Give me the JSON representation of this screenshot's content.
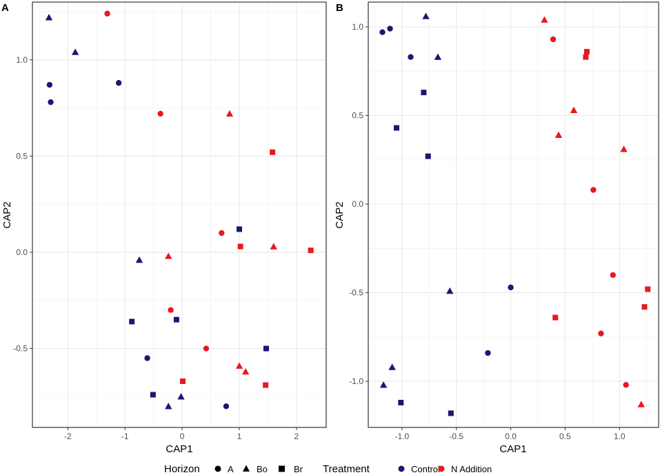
{
  "chart_data": [
    {
      "type": "scatter",
      "panel_label": "A",
      "xlabel": "CAP1",
      "ylabel": "CAP2",
      "xlim": [
        -2.62,
        2.52
      ],
      "ylim": [
        -0.91,
        1.3
      ],
      "xticks": [
        -2,
        -1,
        0,
        1,
        2
      ],
      "yticks": [
        -0.5,
        0.0,
        0.5,
        1.0
      ],
      "ytick_labels": [
        "-0.5",
        "0.0",
        "0.5",
        "1.0"
      ],
      "grid": true,
      "points": [
        {
          "x": -2.33,
          "y": 1.22,
          "horizon": "Bo",
          "treatment": "Control"
        },
        {
          "x": -1.31,
          "y": 1.24,
          "horizon": "A",
          "treatment": "N Addition"
        },
        {
          "x": -1.87,
          "y": 1.04,
          "horizon": "Bo",
          "treatment": "Control"
        },
        {
          "x": -2.32,
          "y": 0.87,
          "horizon": "A",
          "treatment": "Control"
        },
        {
          "x": -1.11,
          "y": 0.88,
          "horizon": "A",
          "treatment": "Control"
        },
        {
          "x": -2.3,
          "y": 0.78,
          "horizon": "A",
          "treatment": "Control"
        },
        {
          "x": -0.38,
          "y": 0.72,
          "horizon": "A",
          "treatment": "N Addition"
        },
        {
          "x": 0.83,
          "y": 0.72,
          "horizon": "Bo",
          "treatment": "N Addition"
        },
        {
          "x": 1.58,
          "y": 0.52,
          "horizon": "Br",
          "treatment": "N Addition"
        },
        {
          "x": 1.0,
          "y": 0.12,
          "horizon": "Br",
          "treatment": "Control"
        },
        {
          "x": 0.69,
          "y": 0.1,
          "horizon": "A",
          "treatment": "N Addition"
        },
        {
          "x": 1.02,
          "y": 0.03,
          "horizon": "Br",
          "treatment": "N Addition"
        },
        {
          "x": 1.6,
          "y": 0.03,
          "horizon": "Bo",
          "treatment": "N Addition"
        },
        {
          "x": 2.25,
          "y": 0.01,
          "horizon": "Br",
          "treatment": "N Addition"
        },
        {
          "x": -0.75,
          "y": -0.04,
          "horizon": "Bo",
          "treatment": "Control"
        },
        {
          "x": -0.24,
          "y": -0.02,
          "horizon": "Bo",
          "treatment": "N Addition"
        },
        {
          "x": -0.2,
          "y": -0.3,
          "horizon": "A",
          "treatment": "N Addition"
        },
        {
          "x": -0.88,
          "y": -0.36,
          "horizon": "Br",
          "treatment": "Control"
        },
        {
          "x": -0.1,
          "y": -0.35,
          "horizon": "Br",
          "treatment": "Control"
        },
        {
          "x": 0.42,
          "y": -0.5,
          "horizon": "A",
          "treatment": "N Addition"
        },
        {
          "x": 1.47,
          "y": -0.5,
          "horizon": "Br",
          "treatment": "Control"
        },
        {
          "x": -0.61,
          "y": -0.55,
          "horizon": "A",
          "treatment": "Control"
        },
        {
          "x": 1.0,
          "y": -0.59,
          "horizon": "Bo",
          "treatment": "N Addition"
        },
        {
          "x": 1.11,
          "y": -0.62,
          "horizon": "Bo",
          "treatment": "N Addition"
        },
        {
          "x": 0.01,
          "y": -0.67,
          "horizon": "Br",
          "treatment": "N Addition"
        },
        {
          "x": 1.46,
          "y": -0.69,
          "horizon": "Br",
          "treatment": "N Addition"
        },
        {
          "x": -0.51,
          "y": -0.74,
          "horizon": "Br",
          "treatment": "Control"
        },
        {
          "x": -0.02,
          "y": -0.75,
          "horizon": "Bo",
          "treatment": "Control"
        },
        {
          "x": -0.24,
          "y": -0.8,
          "horizon": "Bo",
          "treatment": "Control"
        },
        {
          "x": 0.77,
          "y": -0.8,
          "horizon": "A",
          "treatment": "Control"
        }
      ]
    },
    {
      "type": "scatter",
      "panel_label": "B",
      "xlabel": "CAP1",
      "ylabel": "CAP2",
      "xlim": [
        -1.31,
        1.36
      ],
      "ylim": [
        -1.26,
        1.14
      ],
      "xticks": [
        -1.0,
        -0.5,
        0.0,
        0.5,
        1.0
      ],
      "xtick_labels": [
        "-1.0",
        "-0.5",
        "0.0",
        "0.5",
        "1.0"
      ],
      "yticks": [
        -1.0,
        -0.5,
        0.0,
        0.5,
        1.0
      ],
      "ytick_labels": [
        "-1.0",
        "-0.5",
        "0.0",
        "0.5",
        "1.0"
      ],
      "grid": true,
      "points": [
        {
          "x": -1.18,
          "y": 0.97,
          "horizon": "A",
          "treatment": "Control"
        },
        {
          "x": -1.11,
          "y": 0.99,
          "horizon": "A",
          "treatment": "Control"
        },
        {
          "x": -0.78,
          "y": 1.06,
          "horizon": "Bo",
          "treatment": "Control"
        },
        {
          "x": -0.92,
          "y": 0.83,
          "horizon": "A",
          "treatment": "Control"
        },
        {
          "x": -0.67,
          "y": 0.83,
          "horizon": "Bo",
          "treatment": "Control"
        },
        {
          "x": -0.8,
          "y": 0.63,
          "horizon": "Br",
          "treatment": "Control"
        },
        {
          "x": -1.05,
          "y": 0.43,
          "horizon": "Br",
          "treatment": "Control"
        },
        {
          "x": -0.76,
          "y": 0.27,
          "horizon": "Br",
          "treatment": "Control"
        },
        {
          "x": 0.31,
          "y": 1.04,
          "horizon": "Bo",
          "treatment": "N Addition"
        },
        {
          "x": 0.39,
          "y": 0.93,
          "horizon": "A",
          "treatment": "N Addition"
        },
        {
          "x": 0.7,
          "y": 0.86,
          "horizon": "Br",
          "treatment": "N Addition"
        },
        {
          "x": 0.69,
          "y": 0.83,
          "horizon": "Br",
          "treatment": "N Addition"
        },
        {
          "x": 0.58,
          "y": 0.53,
          "horizon": "Bo",
          "treatment": "N Addition"
        },
        {
          "x": 0.44,
          "y": 0.39,
          "horizon": "Bo",
          "treatment": "N Addition"
        },
        {
          "x": 1.04,
          "y": 0.31,
          "horizon": "Bo",
          "treatment": "N Addition"
        },
        {
          "x": 0.76,
          "y": 0.08,
          "horizon": "A",
          "treatment": "N Addition"
        },
        {
          "x": -0.56,
          "y": -0.49,
          "horizon": "Bo",
          "treatment": "Control"
        },
        {
          "x": 0.0,
          "y": -0.47,
          "horizon": "A",
          "treatment": "Control"
        },
        {
          "x": 0.94,
          "y": -0.4,
          "horizon": "A",
          "treatment": "N Addition"
        },
        {
          "x": 1.26,
          "y": -0.48,
          "horizon": "Br",
          "treatment": "N Addition"
        },
        {
          "x": 1.23,
          "y": -0.58,
          "horizon": "Br",
          "treatment": "N Addition"
        },
        {
          "x": 0.41,
          "y": -0.64,
          "horizon": "Br",
          "treatment": "N Addition"
        },
        {
          "x": 0.83,
          "y": -0.73,
          "horizon": "A",
          "treatment": "N Addition"
        },
        {
          "x": -0.21,
          "y": -0.84,
          "horizon": "A",
          "treatment": "Control"
        },
        {
          "x": -1.09,
          "y": -0.92,
          "horizon": "Bo",
          "treatment": "Control"
        },
        {
          "x": -1.17,
          "y": -1.02,
          "horizon": "Bo",
          "treatment": "Control"
        },
        {
          "x": 1.06,
          "y": -1.02,
          "horizon": "A",
          "treatment": "N Addition"
        },
        {
          "x": -1.01,
          "y": -1.12,
          "horizon": "Br",
          "treatment": "Control"
        },
        {
          "x": 1.2,
          "y": -1.13,
          "horizon": "Bo",
          "treatment": "N Addition"
        },
        {
          "x": -0.55,
          "y": -1.18,
          "horizon": "Br",
          "treatment": "Control"
        }
      ]
    }
  ],
  "legend": {
    "horizon_title": "Horizon",
    "horizon_items": [
      {
        "label": "A",
        "shape": "circle"
      },
      {
        "label": "Bo",
        "shape": "triangle"
      },
      {
        "label": "Br",
        "shape": "square"
      }
    ],
    "treatment_title": "Treatment",
    "treatment_items": [
      {
        "label": "Control",
        "color": "#191970"
      },
      {
        "label": "N Addition",
        "color": "#e8191e"
      }
    ]
  }
}
